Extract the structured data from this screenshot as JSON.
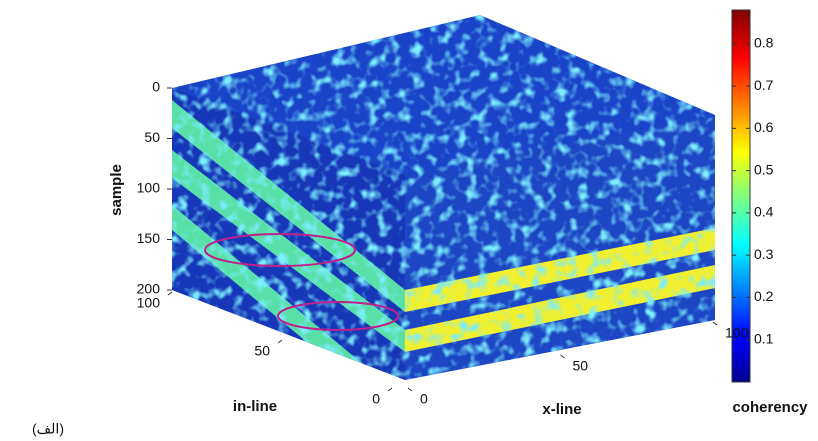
{
  "chart_data": {
    "type": "volume",
    "caption": "(الف)",
    "sample_axis": {
      "label": "sample",
      "lim": [
        0,
        200
      ],
      "ticks": [
        0,
        50,
        100,
        150,
        200
      ]
    },
    "inline_axis": {
      "label": "in-line",
      "lim": [
        0,
        100
      ],
      "ticks": [
        0,
        50,
        100
      ]
    },
    "xline_axis": {
      "label": "x-line",
      "lim": [
        0,
        100
      ],
      "ticks": [
        0,
        50,
        100
      ]
    },
    "colorbar": {
      "label": "coherency",
      "clim": [
        0,
        0.88
      ],
      "ticks": [
        0.1,
        0.2,
        0.3,
        0.4,
        0.5,
        0.6,
        0.7,
        0.8
      ]
    }
  }
}
